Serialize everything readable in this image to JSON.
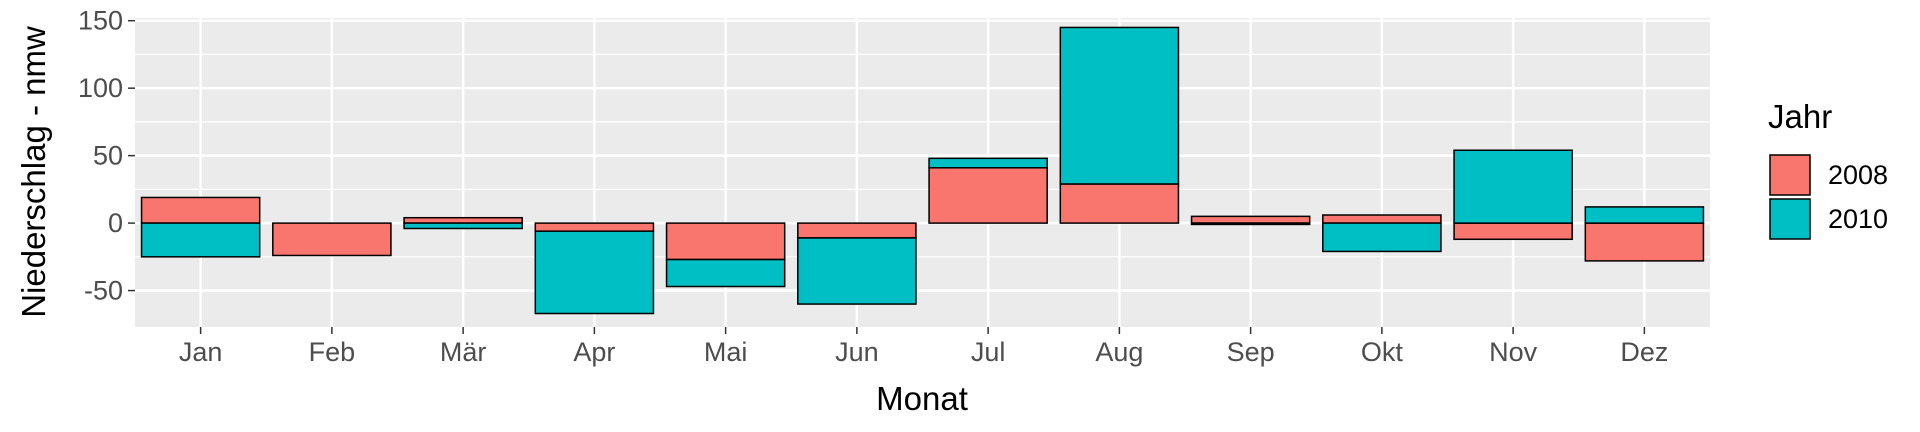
{
  "chart_data": {
    "type": "bar",
    "stacking": "stacked, diverging around 0",
    "categories": [
      "Jan",
      "Feb",
      "Mär",
      "Apr",
      "Mai",
      "Jun",
      "Jul",
      "Aug",
      "Sep",
      "Okt",
      "Nov",
      "Dez"
    ],
    "series": [
      {
        "name": "2008",
        "color": "#F8766D",
        "values": [
          19,
          -24,
          4,
          -6,
          -27,
          -11,
          41,
          29,
          5,
          6,
          -12,
          -28
        ]
      },
      {
        "name": "2010",
        "color": "#00BFC4",
        "values": [
          -25,
          0,
          -4,
          -61,
          -20,
          -49,
          7,
          116,
          -1,
          -21,
          54,
          12
        ]
      }
    ],
    "xlabel": "Monat",
    "ylabel": "Niederschlag - nmw",
    "ylim": [
      -77,
      152
    ],
    "yticks": [
      -50,
      0,
      50,
      100,
      150
    ],
    "ytick_labels": [
      "-50",
      "0",
      "50",
      "100",
      "150"
    ],
    "grid": true,
    "panel_background": "#EBEBEB",
    "legend": {
      "title": "Jahr",
      "position": "right"
    }
  }
}
